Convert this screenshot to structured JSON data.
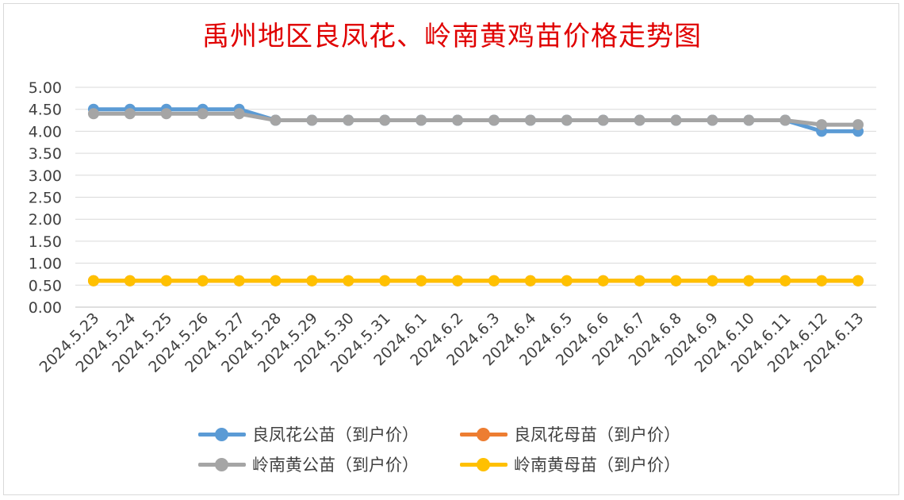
{
  "chart_data": {
    "type": "line",
    "title": "禹州地区良凤花、岭南黄鸡苗价格走势图",
    "categories": [
      "2024.5.23",
      "2024.5.24",
      "2024.5.25",
      "2024.5.26",
      "2024.5.27",
      "2024.5.28",
      "2024.5.29",
      "2024.5.30",
      "2024.5.31",
      "2024.6.1",
      "2024.6.2",
      "2024.6.3",
      "2024.6.4",
      "2024.6.5",
      "2024.6.6",
      "2024.6.7",
      "2024.6.8",
      "2024.6.9",
      "2024.6.10",
      "2024.6.11",
      "2024.6.12",
      "2024.6.13"
    ],
    "ylim": [
      0,
      5
    ],
    "yticks": [
      "0.00",
      "0.50",
      "1.00",
      "1.50",
      "2.00",
      "2.50",
      "3.00",
      "3.50",
      "4.00",
      "4.50",
      "5.00"
    ],
    "grid": true,
    "legend_position": "bottom",
    "series": [
      {
        "name": "良凤花公苗（到户价）",
        "color": "#5b9bd5",
        "values": [
          4.5,
          4.5,
          4.5,
          4.5,
          4.5,
          4.25,
          4.25,
          4.25,
          4.25,
          4.25,
          4.25,
          4.25,
          4.25,
          4.25,
          4.25,
          4.25,
          4.25,
          4.25,
          4.25,
          4.25,
          4.0,
          4.0
        ]
      },
      {
        "name": "良凤花母苗（到户价）",
        "color": "#ed7d31",
        "values": [
          0.6,
          0.6,
          0.6,
          0.6,
          0.6,
          0.6,
          0.6,
          0.6,
          0.6,
          0.6,
          0.6,
          0.6,
          0.6,
          0.6,
          0.6,
          0.6,
          0.6,
          0.6,
          0.6,
          0.6,
          0.6,
          0.6
        ]
      },
      {
        "name": "岭南黄公苗（到户价）",
        "color": "#a5a5a5",
        "values": [
          4.4,
          4.4,
          4.4,
          4.4,
          4.4,
          4.25,
          4.25,
          4.25,
          4.25,
          4.25,
          4.25,
          4.25,
          4.25,
          4.25,
          4.25,
          4.25,
          4.25,
          4.25,
          4.25,
          4.25,
          4.15,
          4.15
        ]
      },
      {
        "name": "岭南黄母苗（到户价）",
        "color": "#ffc000",
        "values": [
          0.6,
          0.6,
          0.6,
          0.6,
          0.6,
          0.6,
          0.6,
          0.6,
          0.6,
          0.6,
          0.6,
          0.6,
          0.6,
          0.6,
          0.6,
          0.6,
          0.6,
          0.6,
          0.6,
          0.6,
          0.6,
          0.6
        ]
      }
    ]
  }
}
